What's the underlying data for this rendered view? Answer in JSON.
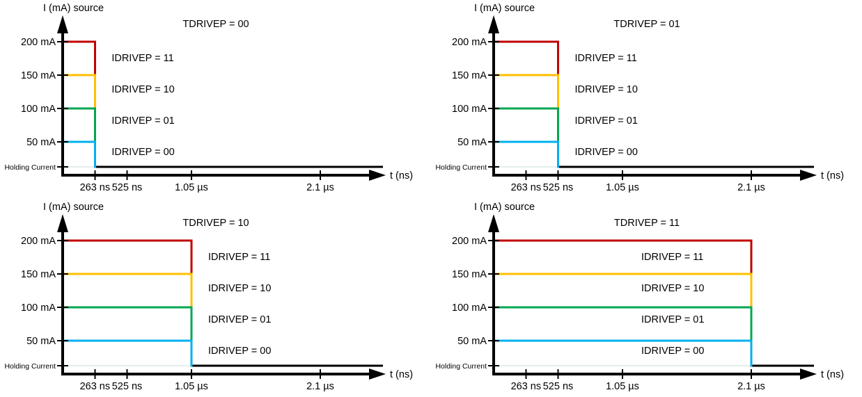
{
  "colors": {
    "background": "#FFFFFF",
    "axis": "#000000",
    "holding_trace": "#000000",
    "pre_drop_holding_line": "#E4EDED",
    "idrivep_11_line": "#C00000",
    "idrivep_11_label": "#FF0000",
    "idrivep_10": "#FFC000",
    "idrivep_01": "#00A650",
    "idrivep_00": "#00B0F0"
  },
  "chart_data": [
    {
      "type": "line",
      "title": "TDRIVEP = 00",
      "xlabel": "t (ns)",
      "ylabel": "I (mA) source",
      "x_tick_labels": [
        "263 ns",
        "525 ns",
        "1.05 µs",
        "2.1 µs"
      ],
      "x_ticks_ns": [
        263,
        525,
        1050,
        2100
      ],
      "y_tick_labels": [
        "200 mA",
        "150 mA",
        "100 mA",
        "50 mA"
      ],
      "y_ticks_mA": [
        200,
        150,
        100,
        50
      ],
      "holding_label": "Holding Current",
      "pulse_duration_ns": 263,
      "pulse_duration_label": "263 ns",
      "after_pulse_level": "Holding Current",
      "series": [
        {
          "name": "IDRIVEP = 11",
          "level_mA": 200,
          "line_color": "#C00000",
          "label_color": "#FF0000"
        },
        {
          "name": "IDRIVEP = 10",
          "level_mA": 150,
          "line_color": "#FFC000",
          "label_color": "#FFC000"
        },
        {
          "name": "IDRIVEP = 01",
          "level_mA": 100,
          "line_color": "#00A650",
          "label_color": "#00A650"
        },
        {
          "name": "IDRIVEP = 00",
          "level_mA": 50,
          "line_color": "#00B0F0",
          "label_color": "#00B0F0"
        }
      ]
    },
    {
      "type": "line",
      "title": "TDRIVEP = 01",
      "xlabel": "t (ns)",
      "ylabel": "I (mA) source",
      "x_tick_labels": [
        "263 ns",
        "525 ns",
        "1.05 µs",
        "2.1 µs"
      ],
      "x_ticks_ns": [
        263,
        525,
        1050,
        2100
      ],
      "y_tick_labels": [
        "200 mA",
        "150 mA",
        "100 mA",
        "50 mA"
      ],
      "y_ticks_mA": [
        200,
        150,
        100,
        50
      ],
      "holding_label": "Holding Current",
      "pulse_duration_ns": 525,
      "pulse_duration_label": "525 ns",
      "after_pulse_level": "Holding Current",
      "series": [
        {
          "name": "IDRIVEP = 11",
          "level_mA": 200,
          "line_color": "#C00000",
          "label_color": "#FF0000"
        },
        {
          "name": "IDRIVEP = 10",
          "level_mA": 150,
          "line_color": "#FFC000",
          "label_color": "#FFC000"
        },
        {
          "name": "IDRIVEP = 01",
          "level_mA": 100,
          "line_color": "#00A650",
          "label_color": "#00A650"
        },
        {
          "name": "IDRIVEP = 00",
          "level_mA": 50,
          "line_color": "#00B0F0",
          "label_color": "#00B0F0"
        }
      ]
    },
    {
      "type": "line",
      "title": "TDRIVEP = 10",
      "xlabel": "t (ns)",
      "ylabel": "I (mA) source",
      "x_tick_labels": [
        "263 ns",
        "525 ns",
        "1.05 µs",
        "2.1 µs"
      ],
      "x_ticks_ns": [
        263,
        525,
        1050,
        2100
      ],
      "y_tick_labels": [
        "200 mA",
        "150 mA",
        "100 mA",
        "50 mA"
      ],
      "y_ticks_mA": [
        200,
        150,
        100,
        50
      ],
      "holding_label": "Holding Current",
      "pulse_duration_ns": 1050,
      "pulse_duration_label": "1.05 µs",
      "after_pulse_level": "Holding Current",
      "series": [
        {
          "name": "IDRIVEP = 11",
          "level_mA": 200,
          "line_color": "#C00000",
          "label_color": "#FF0000"
        },
        {
          "name": "IDRIVEP = 10",
          "level_mA": 150,
          "line_color": "#FFC000",
          "label_color": "#FFC000"
        },
        {
          "name": "IDRIVEP = 01",
          "level_mA": 100,
          "line_color": "#00A650",
          "label_color": "#00A650"
        },
        {
          "name": "IDRIVEP = 00",
          "level_mA": 50,
          "line_color": "#00B0F0",
          "label_color": "#00B0F0"
        }
      ]
    },
    {
      "type": "line",
      "title": "TDRIVEP = 11",
      "xlabel": "t (ns)",
      "ylabel": "I (mA) source",
      "x_tick_labels": [
        "263 ns",
        "525 ns",
        "1.05 µs",
        "2.1 µs"
      ],
      "x_ticks_ns": [
        263,
        525,
        1050,
        2100
      ],
      "y_tick_labels": [
        "200 mA",
        "150 mA",
        "100 mA",
        "50 mA"
      ],
      "y_ticks_mA": [
        200,
        150,
        100,
        50
      ],
      "holding_label": "Holding Current",
      "pulse_duration_ns": 2100,
      "pulse_duration_label": "2.1 µs",
      "after_pulse_level": "Holding Current",
      "series": [
        {
          "name": "IDRIVEP = 11",
          "level_mA": 200,
          "line_color": "#C00000",
          "label_color": "#FF0000"
        },
        {
          "name": "IDRIVEP = 10",
          "level_mA": 150,
          "line_color": "#FFC000",
          "label_color": "#FFC000"
        },
        {
          "name": "IDRIVEP = 01",
          "level_mA": 100,
          "line_color": "#00A650",
          "label_color": "#00A650"
        },
        {
          "name": "IDRIVEP = 00",
          "level_mA": 50,
          "line_color": "#00B0F0",
          "label_color": "#00B0F0"
        }
      ]
    }
  ]
}
